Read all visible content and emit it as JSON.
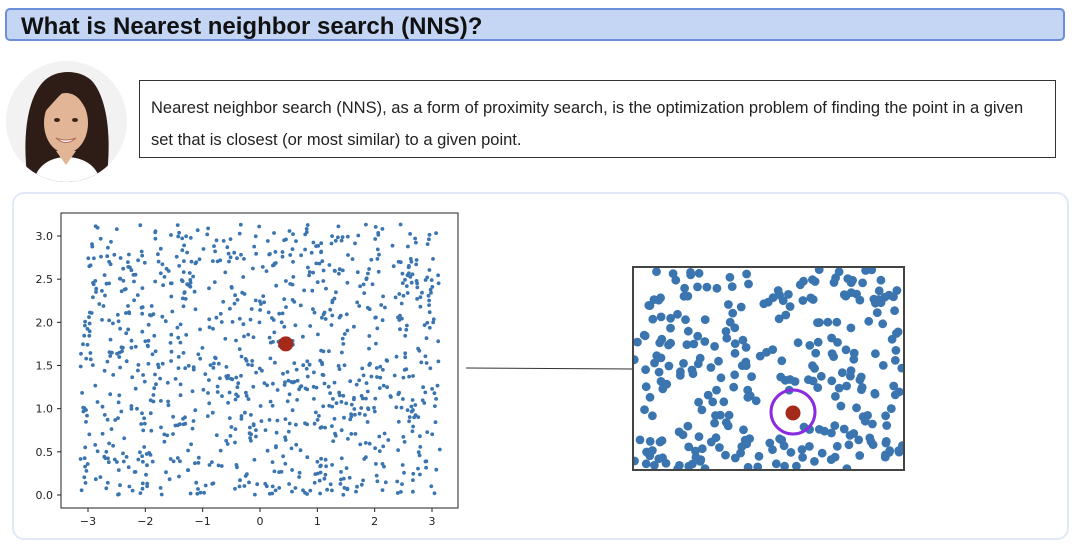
{
  "header": {
    "title": "What is Nearest neighbor search (NNS)?"
  },
  "definition": {
    "text": "Nearest neighbor search (NNS), as a form of proximity search, is the optimization problem of finding the point in a given set that is closest (or most similar) to a given point."
  },
  "colors": {
    "title_bg": "#c5d6f5",
    "title_border": "#6b8fd9",
    "points": "#3a75b0",
    "query": "#a52a1a",
    "highlight_circle": "#8a2be2"
  },
  "chart_data": {
    "type": "scatter",
    "x_ticks": [
      "−3",
      "−2",
      "−1",
      "0",
      "1",
      "2",
      "3"
    ],
    "y_ticks": [
      "0.0",
      "0.5",
      "1.0",
      "1.5",
      "2.0",
      "2.5",
      "3.0"
    ],
    "xlim": [
      -3.3,
      3.3
    ],
    "ylim": [
      -0.1,
      3.2
    ],
    "point_count": 1000,
    "x_distribution": [
      -3.14,
      3.14
    ],
    "y_distribution": [
      0,
      3.14
    ],
    "query_point": {
      "x": 0.45,
      "y": 1.75
    },
    "zoom_query_point": {
      "x": 0.45,
      "y": 1.75
    }
  }
}
